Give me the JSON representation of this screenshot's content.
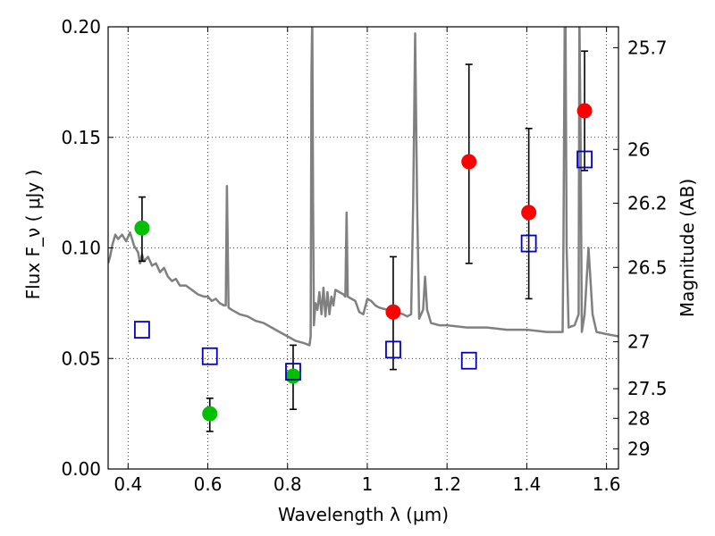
{
  "chart_data": {
    "type": "scatter",
    "xlabel": "Wavelength  λ (μm)",
    "ylabel_left": "Flux  F_ν  ( μJy )",
    "ylabel_right": "Magnitude (AB)",
    "xlim": [
      0.35,
      1.63
    ],
    "ylim": [
      0.0,
      0.2
    ],
    "grid": true,
    "x_ticks": [
      {
        "value": 0.4,
        "label": "0.4"
      },
      {
        "value": 0.6,
        "label": "0.6"
      },
      {
        "value": 0.8,
        "label": "0.8"
      },
      {
        "value": 1.0,
        "label": "1"
      },
      {
        "value": 1.2,
        "label": "1.2"
      },
      {
        "value": 1.4,
        "label": "1.4"
      },
      {
        "value": 1.6,
        "label": "1.6"
      }
    ],
    "y_ticks": [
      {
        "value": 0.0,
        "label": "0.00"
      },
      {
        "value": 0.05,
        "label": "0.05"
      },
      {
        "value": 0.1,
        "label": "0.10"
      },
      {
        "value": 0.15,
        "label": "0.15"
      },
      {
        "value": 0.2,
        "label": "0.20"
      }
    ],
    "mag_ticks": [
      {
        "value": 25.7,
        "label": "25.7"
      },
      {
        "value": 26.0,
        "label": "26"
      },
      {
        "value": 26.2,
        "label": "26.2"
      },
      {
        "value": 26.5,
        "label": "26.5"
      },
      {
        "value": 27.0,
        "label": "27"
      },
      {
        "value": 27.5,
        "label": "27.5"
      },
      {
        "value": 28.0,
        "label": "28"
      },
      {
        "value": 29.0,
        "label": "29"
      }
    ],
    "series": [
      {
        "color": "#00c000",
        "marker": "circle",
        "points": [
          {
            "x": 0.435,
            "y": 0.109,
            "err_low": 0.094,
            "err_high": 0.123
          },
          {
            "x": 0.605,
            "y": 0.025,
            "err_low": 0.017,
            "err_high": 0.032
          },
          {
            "x": 0.814,
            "y": 0.042,
            "err_low": 0.027,
            "err_high": 0.056
          }
        ]
      },
      {
        "color": "#ff0000",
        "marker": "circle",
        "points": [
          {
            "x": 1.065,
            "y": 0.071,
            "err_low": 0.045,
            "err_high": 0.096
          },
          {
            "x": 1.255,
            "y": 0.139,
            "err_low": 0.093,
            "err_high": 0.183
          },
          {
            "x": 1.405,
            "y": 0.116,
            "err_low": 0.077,
            "err_high": 0.154
          },
          {
            "x": 1.545,
            "y": 0.162,
            "err_low": 0.135,
            "err_high": 0.189
          }
        ]
      },
      {
        "color": "#0000cc",
        "marker": "open-square",
        "points": [
          {
            "x": 0.435,
            "y": 0.063
          },
          {
            "x": 0.605,
            "y": 0.051
          },
          {
            "x": 0.814,
            "y": 0.044
          },
          {
            "x": 1.065,
            "y": 0.054
          },
          {
            "x": 1.255,
            "y": 0.049
          },
          {
            "x": 1.405,
            "y": 0.102
          },
          {
            "x": 1.545,
            "y": 0.14
          }
        ]
      },
      {
        "color": "#808080",
        "marker": "line",
        "points": [
          [
            0.35,
            0.093
          ],
          [
            0.355,
            0.096
          ],
          [
            0.36,
            0.101
          ],
          [
            0.368,
            0.106
          ],
          [
            0.375,
            0.104
          ],
          [
            0.385,
            0.106
          ],
          [
            0.395,
            0.103
          ],
          [
            0.405,
            0.107
          ],
          [
            0.415,
            0.101
          ],
          [
            0.425,
            0.098
          ],
          [
            0.43,
            0.093
          ],
          [
            0.435,
            0.097
          ],
          [
            0.44,
            0.094
          ],
          [
            0.45,
            0.096
          ],
          [
            0.46,
            0.092
          ],
          [
            0.47,
            0.093
          ],
          [
            0.48,
            0.089
          ],
          [
            0.49,
            0.091
          ],
          [
            0.5,
            0.087
          ],
          [
            0.51,
            0.085
          ],
          [
            0.52,
            0.086
          ],
          [
            0.53,
            0.083
          ],
          [
            0.545,
            0.083
          ],
          [
            0.56,
            0.081
          ],
          [
            0.575,
            0.079
          ],
          [
            0.59,
            0.078
          ],
          [
            0.6,
            0.078
          ],
          [
            0.61,
            0.076
          ],
          [
            0.62,
            0.077
          ],
          [
            0.63,
            0.075
          ],
          [
            0.64,
            0.074
          ],
          [
            0.645,
            0.074
          ],
          [
            0.648,
            0.128
          ],
          [
            0.652,
            0.073
          ],
          [
            0.66,
            0.072
          ],
          [
            0.68,
            0.07
          ],
          [
            0.7,
            0.069
          ],
          [
            0.72,
            0.067
          ],
          [
            0.74,
            0.066
          ],
          [
            0.76,
            0.064
          ],
          [
            0.78,
            0.062
          ],
          [
            0.8,
            0.06
          ],
          [
            0.82,
            0.058
          ],
          [
            0.84,
            0.057
          ],
          [
            0.855,
            0.056
          ],
          [
            0.858,
            0.06
          ],
          [
            0.86,
            0.18
          ],
          [
            0.862,
            0.205
          ],
          [
            0.864,
            0.12
          ],
          [
            0.866,
            0.065
          ],
          [
            0.87,
            0.075
          ],
          [
            0.875,
            0.072
          ],
          [
            0.88,
            0.08
          ],
          [
            0.885,
            0.07
          ],
          [
            0.89,
            0.082
          ],
          [
            0.895,
            0.069
          ],
          [
            0.9,
            0.08
          ],
          [
            0.905,
            0.07
          ],
          [
            0.91,
            0.078
          ],
          [
            0.915,
            0.074
          ],
          [
            0.92,
            0.081
          ],
          [
            0.93,
            0.08
          ],
          [
            0.94,
            0.079
          ],
          [
            0.945,
            0.078
          ],
          [
            0.948,
            0.116
          ],
          [
            0.951,
            0.078
          ],
          [
            0.96,
            0.077
          ],
          [
            0.97,
            0.076
          ],
          [
            0.98,
            0.071
          ],
          [
            0.99,
            0.07
          ],
          [
            1.0,
            0.077
          ],
          [
            1.01,
            0.076
          ],
          [
            1.02,
            0.074
          ],
          [
            1.03,
            0.073
          ],
          [
            1.05,
            0.072
          ],
          [
            1.07,
            0.071
          ],
          [
            1.09,
            0.07
          ],
          [
            1.1,
            0.069
          ],
          [
            1.11,
            0.07
          ],
          [
            1.115,
            0.12
          ],
          [
            1.12,
            0.197
          ],
          [
            1.125,
            0.12
          ],
          [
            1.13,
            0.068
          ],
          [
            1.14,
            0.072
          ],
          [
            1.145,
            0.087
          ],
          [
            1.15,
            0.072
          ],
          [
            1.16,
            0.066
          ],
          [
            1.18,
            0.065
          ],
          [
            1.2,
            0.065
          ],
          [
            1.25,
            0.064
          ],
          [
            1.3,
            0.064
          ],
          [
            1.35,
            0.063
          ],
          [
            1.4,
            0.063
          ],
          [
            1.45,
            0.062
          ],
          [
            1.49,
            0.062
          ],
          [
            1.492,
            0.1
          ],
          [
            1.495,
            0.2
          ],
          [
            1.497,
            0.205
          ],
          [
            1.5,
            0.1
          ],
          [
            1.505,
            0.064
          ],
          [
            1.52,
            0.065
          ],
          [
            1.53,
            0.07
          ],
          [
            1.532,
            0.205
          ],
          [
            1.535,
            0.15
          ],
          [
            1.538,
            0.062
          ],
          [
            1.545,
            0.07
          ],
          [
            1.555,
            0.1
          ],
          [
            1.565,
            0.07
          ],
          [
            1.575,
            0.062
          ],
          [
            1.6,
            0.061
          ],
          [
            1.63,
            0.06
          ]
        ]
      }
    ]
  }
}
